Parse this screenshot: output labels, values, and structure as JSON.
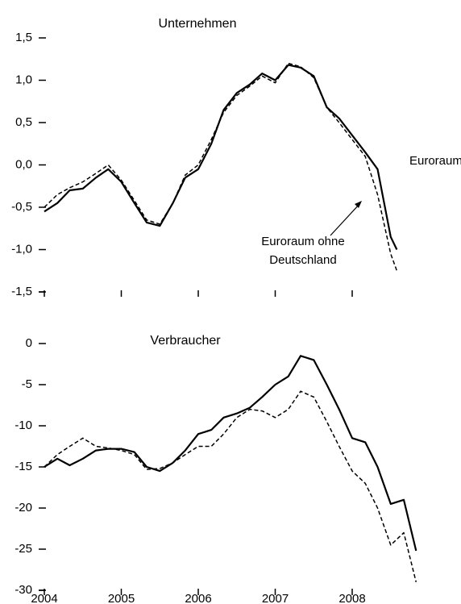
{
  "chart_data": [
    {
      "type": "line",
      "title": "Unternehmen",
      "x": [
        2004.0,
        2004.17,
        2004.33,
        2004.5,
        2004.67,
        2004.83,
        2005.0,
        2005.17,
        2005.33,
        2005.5,
        2005.67,
        2005.83,
        2006.0,
        2006.17,
        2006.33,
        2006.5,
        2006.67,
        2006.83,
        2007.0,
        2007.17,
        2007.33,
        2007.5,
        2007.67,
        2007.83,
        2008.0,
        2008.17,
        2008.33,
        2008.5,
        2008.58
      ],
      "series": [
        {
          "name": "Euroraum",
          "color": "#000000",
          "dash": false,
          "values": [
            -0.55,
            -0.45,
            -0.3,
            -0.28,
            -0.15,
            -0.05,
            -0.2,
            -0.45,
            -0.68,
            -0.72,
            -0.45,
            -0.15,
            -0.05,
            0.25,
            0.65,
            0.85,
            0.95,
            1.08,
            1.0,
            1.18,
            1.15,
            1.05,
            0.68,
            0.55,
            0.35,
            0.15,
            -0.05,
            -0.85,
            -1.0
          ]
        },
        {
          "name": "Euroraum ohne Deutschland",
          "color": "#000000",
          "dash": true,
          "values": [
            -0.5,
            -0.35,
            -0.27,
            -0.2,
            -0.1,
            0.0,
            -0.18,
            -0.42,
            -0.65,
            -0.7,
            -0.45,
            -0.12,
            0.0,
            0.3,
            0.62,
            0.82,
            0.93,
            1.05,
            0.97,
            1.2,
            1.16,
            1.03,
            0.68,
            0.5,
            0.3,
            0.1,
            -0.35,
            -1.05,
            -1.25
          ]
        }
      ],
      "xlim": [
        2004,
        2009
      ],
      "xticks": [
        2004,
        2005,
        2006,
        2007,
        2008
      ],
      "xtick_labels": false,
      "ylim": [
        -1.5,
        1.5
      ],
      "yticks": [
        {
          "value": 1.5,
          "label": "1,5"
        },
        {
          "value": 1.0,
          "label": "1,0"
        },
        {
          "value": 0.5,
          "label": "0,5"
        },
        {
          "value": 0.0,
          "label": "0,0"
        },
        {
          "value": -0.5,
          "label": "-0,5"
        },
        {
          "value": -1.0,
          "label": "-1,0"
        },
        {
          "value": -1.5,
          "label": "-1,5"
        }
      ]
    },
    {
      "type": "line",
      "title": "Verbraucher",
      "x": [
        2004.0,
        2004.17,
        2004.33,
        2004.5,
        2004.67,
        2004.83,
        2005.0,
        2005.17,
        2005.33,
        2005.5,
        2005.67,
        2005.83,
        2006.0,
        2006.17,
        2006.33,
        2006.5,
        2006.67,
        2006.83,
        2007.0,
        2007.17,
        2007.33,
        2007.5,
        2007.67,
        2007.83,
        2008.0,
        2008.17,
        2008.33,
        2008.5,
        2008.67,
        2008.83
      ],
      "series": [
        {
          "color": "#000000",
          "dash": false,
          "values": [
            -15,
            -14,
            -14.8,
            -14,
            -13,
            -12.8,
            -12.8,
            -13.2,
            -15,
            -15.5,
            -14.5,
            -13,
            -11,
            -10.5,
            -9,
            -8.5,
            -7.8,
            -6.5,
            -5,
            -4,
            -1.5,
            -2,
            -5,
            -8,
            -11.5,
            -12,
            -15,
            -19.5,
            -19,
            -25.2
          ]
        },
        {
          "color": "#000000",
          "dash": true,
          "values": [
            -15,
            -13.5,
            -12.5,
            -11.5,
            -12.5,
            -12.7,
            -13,
            -13.5,
            -15.3,
            -15.2,
            -14.5,
            -13.5,
            -12.5,
            -12.5,
            -11,
            -9,
            -8,
            -8.2,
            -9,
            -8,
            -5.8,
            -6.5,
            -9.5,
            -12.5,
            -15.5,
            -17,
            -20,
            -24.5,
            -23,
            -29
          ]
        }
      ],
      "xlim": [
        2004,
        2009
      ],
      "xticks": [
        2004,
        2005,
        2006,
        2007,
        2008
      ],
      "xtick_labels": true,
      "ylim": [
        -30,
        0
      ],
      "yticks": [
        0,
        -5,
        -10,
        -15,
        -20,
        -25,
        -30
      ]
    }
  ]
}
